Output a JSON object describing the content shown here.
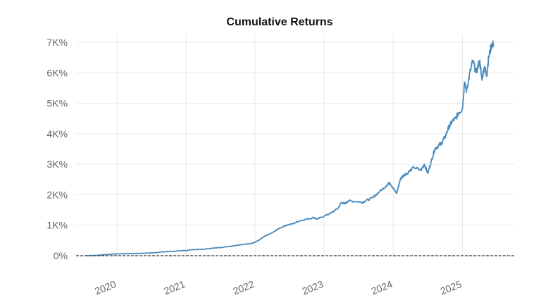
{
  "chart_data": {
    "type": "line",
    "title": "Cumulative Returns",
    "xlabel": "",
    "ylabel": "",
    "ylim": [
      0,
      7000
    ],
    "y_ticks": [
      {
        "value": 0,
        "label": "0%"
      },
      {
        "value": 1000,
        "label": "1K%"
      },
      {
        "value": 2000,
        "label": "2K%"
      },
      {
        "value": 3000,
        "label": "3K%"
      },
      {
        "value": 4000,
        "label": "4K%"
      },
      {
        "value": 5000,
        "label": "5K%"
      },
      {
        "value": 6000,
        "label": "6K%"
      },
      {
        "value": 7000,
        "label": "7K%"
      }
    ],
    "x_ticks": [
      {
        "value": 2020,
        "label": "2020"
      },
      {
        "value": 2021,
        "label": "2021"
      },
      {
        "value": 2022,
        "label": "2022"
      },
      {
        "value": 2023,
        "label": "2023"
      },
      {
        "value": 2024,
        "label": "2024"
      },
      {
        "value": 2025,
        "label": "2025"
      }
    ],
    "xlim": [
      2019.41,
      2025.75
    ],
    "grid": true,
    "baseline": {
      "value": 0,
      "style": "dashed",
      "color": "#333333"
    },
    "series": [
      {
        "color": "#4a8bbd",
        "x": [
          2019.55,
          2019.7,
          2019.85,
          2020.0,
          2020.2,
          2020.4,
          2020.55,
          2020.7,
          2020.85,
          2021.0,
          2021.1,
          2021.25,
          2021.4,
          2021.55,
          2021.7,
          2021.85,
          2021.95,
          2022.0,
          2022.05,
          2022.1,
          2022.15,
          2022.25,
          2022.35,
          2022.45,
          2022.55,
          2022.65,
          2022.75,
          2022.85,
          2022.9,
          2023.0,
          2023.1,
          2023.2,
          2023.25,
          2023.3,
          2023.35,
          2023.45,
          2023.55,
          2023.6,
          2023.7,
          2023.8,
          2023.9,
          2023.95,
          2024.0,
          2024.05,
          2024.1,
          2024.15,
          2024.2,
          2024.3,
          2024.4,
          2024.45,
          2024.5,
          2024.55,
          2024.6,
          2024.65,
          2024.7,
          2024.75,
          2024.8,
          2024.85,
          2024.9,
          2024.95,
          2025.0,
          2025.03,
          2025.06,
          2025.1,
          2025.15,
          2025.2,
          2025.25,
          2025.28,
          2025.32,
          2025.35,
          2025.38,
          2025.42,
          2025.45
        ],
        "values": [
          0,
          10,
          40,
          60,
          70,
          80,
          100,
          130,
          150,
          170,
          200,
          210,
          250,
          280,
          330,
          380,
          400,
          450,
          500,
          580,
          650,
          750,
          900,
          1000,
          1050,
          1150,
          1200,
          1250,
          1200,
          1300,
          1400,
          1550,
          1750,
          1700,
          1800,
          1780,
          1750,
          1800,
          1900,
          2100,
          2300,
          2400,
          2200,
          2050,
          2500,
          2650,
          2700,
          2900,
          2800,
          3000,
          2700,
          3100,
          3500,
          3600,
          3700,
          3900,
          4200,
          4400,
          4500,
          4700,
          4800,
          5700,
          5400,
          5900,
          6400,
          6000,
          6400,
          5800,
          6200,
          5900,
          6500,
          6900,
          6950
        ]
      }
    ]
  }
}
